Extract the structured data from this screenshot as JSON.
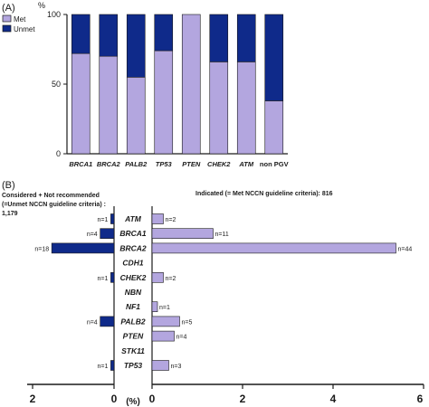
{
  "panel_a": {
    "label": "(A)",
    "y_unit": "%",
    "legend": {
      "met": "Met",
      "unmet": "Unmet"
    },
    "colors": {
      "met": "#b3a6df",
      "unmet": "#0f2a8a",
      "stroke": "#1a1a1a"
    }
  },
  "panel_b": {
    "label": "(B)",
    "left_header": "Considered + Not recommended",
    "left_header_line2": "(=Unmet NCCN guideline criteria) :",
    "left_header_line3": "1,179",
    "right_header": "Indicated (= Met NCCN guideline criteria): 816",
    "axis_unit": "(%)"
  },
  "chart_data": [
    {
      "type": "bar",
      "stacked": true,
      "categories": [
        "BRCA1",
        "BRCA2",
        "PALB2",
        "TP53",
        "PTEN",
        "CHEK2",
        "ATM",
        "non PGV"
      ],
      "series": [
        {
          "name": "Met",
          "values": [
            72,
            70,
            55,
            74,
            100,
            66,
            66,
            38
          ]
        },
        {
          "name": "Unmet",
          "values": [
            28,
            30,
            45,
            26,
            0,
            34,
            34,
            62
          ]
        }
      ],
      "ylabel": "%",
      "ylim": [
        0,
        100
      ],
      "yticks": [
        0,
        50,
        100
      ],
      "legend_position": "top-left"
    },
    {
      "type": "bar",
      "orientation": "horizontal",
      "categories": [
        "ATM",
        "BRCA1",
        "BRCA2",
        "CDH1",
        "CHEK2",
        "NBN",
        "NF1",
        "PALB2",
        "PTEN",
        "STK11",
        "TP53"
      ],
      "left": {
        "values": [
          0.08,
          0.34,
          1.53,
          0,
          0.08,
          0,
          0,
          0.34,
          0,
          0,
          0.08
        ],
        "labels": [
          "n=1",
          "n=4",
          "n=18",
          "",
          "n=1",
          "",
          "",
          "n=4",
          "",
          "",
          "n=1"
        ],
        "xlim": [
          0,
          2
        ],
        "xticks": [
          2,
          0
        ]
      },
      "right": {
        "values": [
          0.25,
          1.35,
          5.39,
          0,
          0.25,
          0,
          0.12,
          0.61,
          0.49,
          0,
          0.37
        ],
        "labels": [
          "n=2",
          "n=11",
          "n=44",
          "",
          "n=2",
          "",
          "n=1",
          "n=5",
          "n=4",
          "",
          "n=3"
        ],
        "xlim": [
          0,
          6
        ],
        "xticks": [
          0,
          2,
          4,
          6
        ]
      },
      "xlabel": "(%)"
    }
  ]
}
